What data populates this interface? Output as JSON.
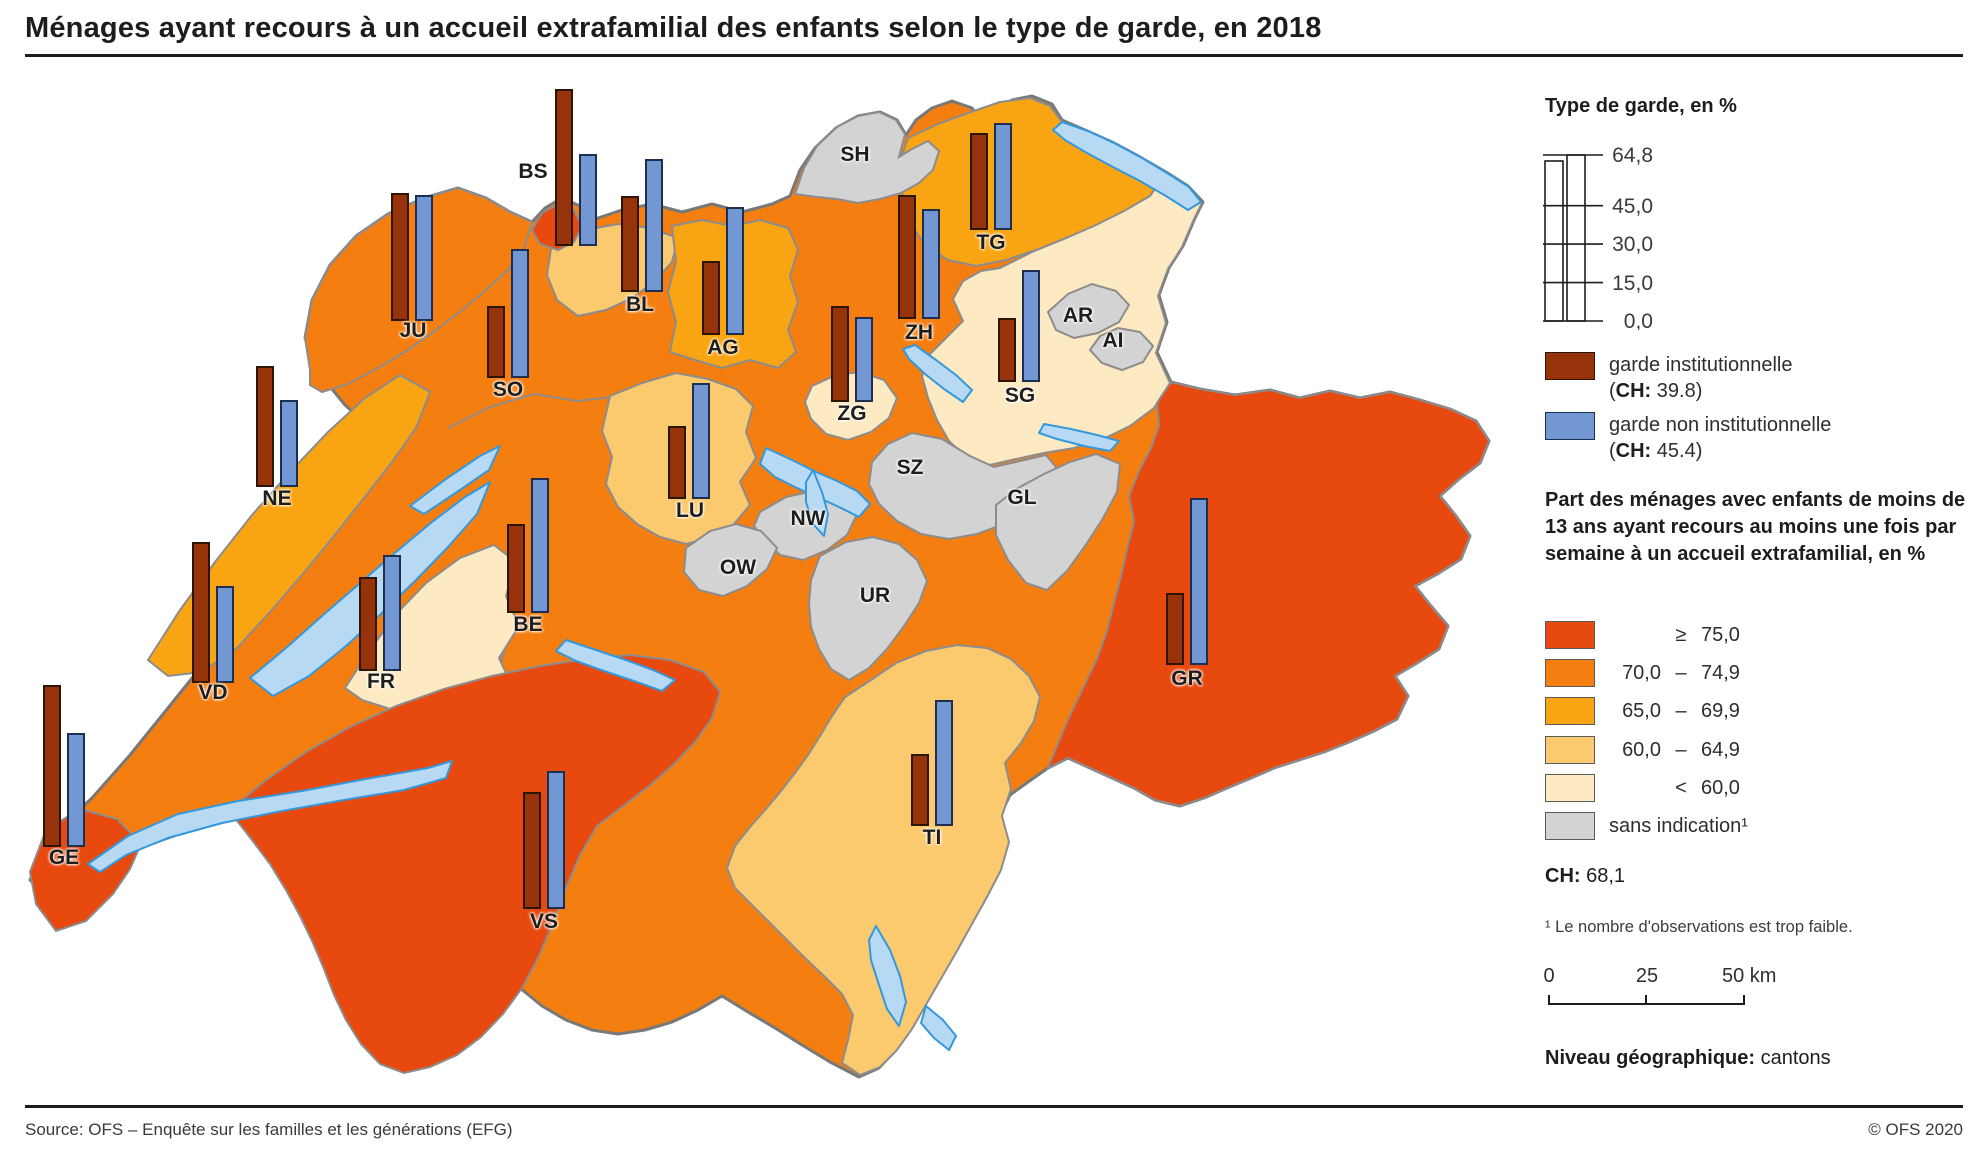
{
  "title": "Ménages ayant recours à un accueil extrafamilial des enfants selon le type de garde, en 2018",
  "care_type_legend": {
    "title": "Type de garde, en %",
    "axis_ticks": [
      "64,8",
      "45,0",
      "30,0",
      "15,0",
      "0,0"
    ],
    "series": [
      {
        "name": "garde institutionnelle",
        "ch_prefix": "(CH:",
        "ch_value": "39,8)",
        "color": "#96330b"
      },
      {
        "name": "garde non institutionnelle",
        "ch_prefix": "(CH:",
        "ch_value": "45,4)",
        "color": "#7397d3"
      }
    ]
  },
  "choropleth_legend": {
    "title": "Part des ménages avec enfants de moins de 13 ans ayant recours au moins une fois par semaine à un accueil extrafamilial, en %",
    "classes": [
      {
        "min": "",
        "op": "≥",
        "max": "75,0",
        "color": "#e8490f"
      },
      {
        "min": "70,0",
        "op": "–",
        "max": "74,9",
        "color": "#f57e11"
      },
      {
        "min": "65,0",
        "op": "–",
        "max": "69,9",
        "color": "#f9a513"
      },
      {
        "min": "60,0",
        "op": "–",
        "max": "64,9",
        "color": "#fbc96e"
      },
      {
        "min": "",
        "op": "<",
        "max": "60,0",
        "color": "#fde9c2"
      },
      {
        "label": "sans indication¹",
        "color": "#d3d3d3"
      }
    ],
    "ch_label": "CH:",
    "ch_value": "68,1"
  },
  "footnote": "¹ Le nombre d'observations est trop faible.",
  "scale_bar": {
    "labels": [
      "0",
      "25",
      "50 km"
    ]
  },
  "geo_level": {
    "bold": "Niveau géographique:",
    "value": "cantons"
  },
  "footer": {
    "source": "Source: OFS – Enquête sur les familles et les générations (EFG)",
    "copyright": "© OFS 2020"
  },
  "chart_data": {
    "type": "map+bar",
    "units": "percent",
    "bar_axis_max": 64.8,
    "ch_summary": {
      "institutionnelle": 39.8,
      "non_institutionnelle": 45.4,
      "total": 68.1
    },
    "series_names": [
      "garde institutionnelle",
      "garde non institutionnelle"
    ],
    "cantons": [
      {
        "code": "ZH",
        "institutionnelle": 48.4,
        "non_institutionnelle": 42.8,
        "classe": "70,0 – 74,9"
      },
      {
        "code": "BE",
        "institutionnelle": 34.8,
        "non_institutionnelle": 52.5,
        "classe": "70,0 – 74,9"
      },
      {
        "code": "LU",
        "institutionnelle": 28.5,
        "non_institutionnelle": 45.0,
        "classe": "60,0 – 64,9"
      },
      {
        "code": "UR",
        "institutionnelle": null,
        "non_institutionnelle": null,
        "classe": "sans indication"
      },
      {
        "code": "SZ",
        "institutionnelle": null,
        "non_institutionnelle": null,
        "classe": "sans indication"
      },
      {
        "code": "OW",
        "institutionnelle": null,
        "non_institutionnelle": null,
        "classe": "sans indication"
      },
      {
        "code": "NW",
        "institutionnelle": null,
        "non_institutionnelle": null,
        "classe": "sans indication"
      },
      {
        "code": "GL",
        "institutionnelle": null,
        "non_institutionnelle": null,
        "classe": "sans indication"
      },
      {
        "code": "ZG",
        "institutionnelle": 37.4,
        "non_institutionnelle": 33.1,
        "classe": "< 60,0"
      },
      {
        "code": "FR",
        "institutionnelle": 36.6,
        "non_institutionnelle": 45.0,
        "classe": "< 60,0"
      },
      {
        "code": "SO",
        "institutionnelle": 28.0,
        "non_institutionnelle": 50.3,
        "classe": "70,0 – 74,9"
      },
      {
        "code": "BS",
        "institutionnelle": 60.9,
        "non_institutionnelle": 35.9,
        "classe": "≥ 75,0"
      },
      {
        "code": "BL",
        "institutionnelle": 37.2,
        "non_institutionnelle": 51.6,
        "classe": "60,0 – 64,9"
      },
      {
        "code": "SH",
        "institutionnelle": null,
        "non_institutionnelle": null,
        "classe": "sans indication"
      },
      {
        "code": "AR",
        "institutionnelle": null,
        "non_institutionnelle": null,
        "classe": "sans indication"
      },
      {
        "code": "AI",
        "institutionnelle": null,
        "non_institutionnelle": null,
        "classe": "sans indication"
      },
      {
        "code": "SG",
        "institutionnelle": 25.0,
        "non_institutionnelle": 43.5,
        "classe": "< 60,0"
      },
      {
        "code": "GR",
        "institutionnelle": 27.9,
        "non_institutionnelle": 64.8,
        "classe": "≥ 75,0"
      },
      {
        "code": "AG",
        "institutionnelle": 28.9,
        "non_institutionnelle": 49.9,
        "classe": "65,0 – 69,9"
      },
      {
        "code": "TG",
        "institutionnelle": 37.6,
        "non_institutionnelle": 41.8,
        "classe": "65,0 – 69,9"
      },
      {
        "code": "TI",
        "institutionnelle": 28.1,
        "non_institutionnelle": 48.9,
        "classe": "60,0 – 64,9"
      },
      {
        "code": "VD",
        "institutionnelle": 54.9,
        "non_institutionnelle": 37.7,
        "classe": "70,0 – 74,9"
      },
      {
        "code": "VS",
        "institutionnelle": 45.6,
        "non_institutionnelle": 53.8,
        "classe": "≥ 75,0"
      },
      {
        "code": "NE",
        "institutionnelle": 47.2,
        "non_institutionnelle": 34.0,
        "classe": "65,0 – 69,9"
      },
      {
        "code": "GE",
        "institutionnelle": 62.9,
        "non_institutionnelle": 44.4,
        "classe": "≥ 75,0"
      },
      {
        "code": "JU",
        "institutionnelle": 49.9,
        "non_institutionnelle": 49.0,
        "classe": "70,0 – 74,9"
      }
    ]
  }
}
